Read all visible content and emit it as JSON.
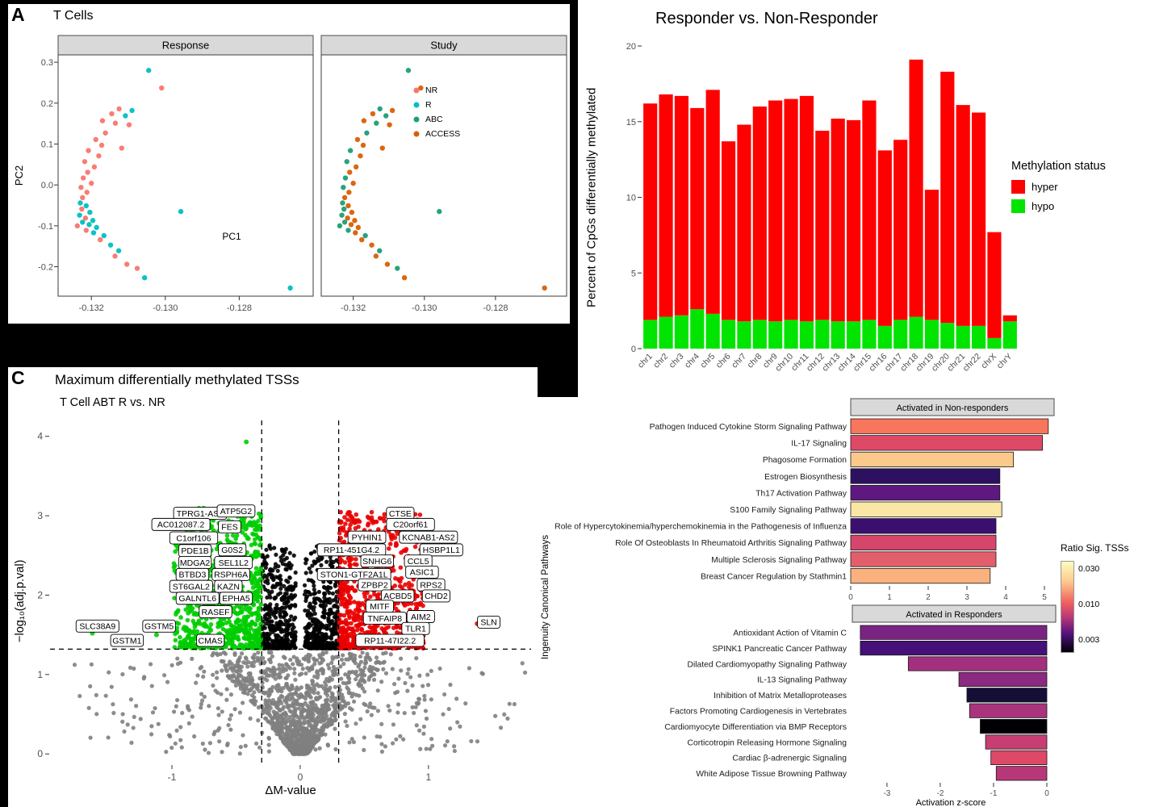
{
  "panels": {
    "a": {
      "letter": "A",
      "title": "T Cells"
    },
    "c": {
      "letter": "C",
      "title": "Maximum differentially methylated TSSs",
      "subtitle": "T Cell ABT R vs. NR"
    }
  },
  "chart_data": [
    {
      "id": "pca_t_cells",
      "type": "scatter",
      "title": "T Cells",
      "facets": [
        "Response",
        "Study"
      ],
      "xlabel": "PC1",
      "ylabel": "PC2",
      "x_ticks": [
        -0.132,
        -0.13,
        -0.128
      ],
      "y_ticks": [
        -0.2,
        -0.1,
        0,
        0.1,
        0.2,
        0.3
      ],
      "xlim": [
        -0.1329,
        -0.126
      ],
      "ylim": [
        -0.272,
        0.318
      ],
      "colors": {
        "NR": "#F8766D",
        "R": "#00BFC4",
        "ABC": "#1B9E77",
        "ACCESS": "#D95F02"
      },
      "legend": [
        {
          "label": "NR",
          "color": "#F8766D"
        },
        {
          "label": "R",
          "color": "#00BFC4"
        },
        {
          "label": "ABC",
          "color": "#1B9E77"
        },
        {
          "label": "ACCESS",
          "color": "#D95F02"
        }
      ],
      "point_format": [
        "x",
        "y",
        "response",
        "study"
      ],
      "points": [
        [
          -0.13045,
          0.28,
          "R",
          "ABC"
        ],
        [
          -0.1301,
          0.237,
          "NR",
          "ACCESS"
        ],
        [
          -0.13125,
          0.186,
          "NR",
          "ABC"
        ],
        [
          -0.1309,
          0.182,
          "R",
          "ACCESS"
        ],
        [
          -0.13145,
          0.174,
          "NR",
          "ACCESS"
        ],
        [
          -0.13108,
          0.169,
          "R",
          "ABC"
        ],
        [
          -0.1317,
          0.157,
          "NR",
          "ACCESS"
        ],
        [
          -0.13135,
          0.151,
          "NR",
          "ABC"
        ],
        [
          -0.13098,
          0.147,
          "NR",
          "ACCESS"
        ],
        [
          -0.13162,
          0.127,
          "NR",
          "ABC"
        ],
        [
          -0.13188,
          0.111,
          "NR",
          "ACCESS"
        ],
        [
          -0.13118,
          0.09,
          "NR",
          "ACCESS"
        ],
        [
          -0.13172,
          0.097,
          "NR",
          "ACCESS"
        ],
        [
          -0.13208,
          0.084,
          "NR",
          "ABC"
        ],
        [
          -0.1318,
          0.071,
          "NR",
          "ACCESS"
        ],
        [
          -0.13218,
          0.057,
          "NR",
          "ABC"
        ],
        [
          -0.13192,
          0.044,
          "NR",
          "ACCESS"
        ],
        [
          -0.1321,
          0.031,
          "NR",
          "ACCESS"
        ],
        [
          -0.13222,
          0.017,
          "NR",
          "ABC"
        ],
        [
          -0.132,
          0.004,
          "NR",
          "ACCESS"
        ],
        [
          -0.13228,
          -0.006,
          "NR",
          "ABC"
        ],
        [
          -0.13212,
          -0.018,
          "NR",
          "ACCESS"
        ],
        [
          -0.13224,
          -0.031,
          "NR",
          "ACCESS"
        ],
        [
          -0.1323,
          -0.044,
          "R",
          "ABC"
        ],
        [
          -0.13214,
          -0.051,
          "R",
          "ACCESS"
        ],
        [
          -0.13226,
          -0.059,
          "NR",
          "ABC"
        ],
        [
          -0.13204,
          -0.067,
          "R",
          "ACCESS"
        ],
        [
          -0.13232,
          -0.074,
          "R",
          "ABC"
        ],
        [
          -0.13216,
          -0.081,
          "NR",
          "ACCESS"
        ],
        [
          -0.13196,
          -0.087,
          "R",
          "ACCESS"
        ],
        [
          -0.13224,
          -0.091,
          "R",
          "ABC"
        ],
        [
          -0.13206,
          -0.097,
          "R",
          "ACCESS"
        ],
        [
          -0.13238,
          -0.1,
          "NR",
          "ABC"
        ],
        [
          -0.13186,
          -0.104,
          "R",
          "ACCESS"
        ],
        [
          -0.13214,
          -0.111,
          "NR",
          "ABC"
        ],
        [
          -0.13194,
          -0.117,
          "R",
          "ACCESS"
        ],
        [
          -0.13166,
          -0.124,
          "R",
          "ABC"
        ],
        [
          -0.13176,
          -0.134,
          "NR",
          "ACCESS"
        ],
        [
          -0.13148,
          -0.147,
          "R",
          "ACCESS"
        ],
        [
          -0.13126,
          -0.161,
          "R",
          "ABC"
        ],
        [
          -0.13136,
          -0.174,
          "NR",
          "ACCESS"
        ],
        [
          -0.13104,
          -0.194,
          "NR",
          "ACCESS"
        ],
        [
          -0.13076,
          -0.204,
          "NR",
          "ABC"
        ],
        [
          -0.13056,
          -0.227,
          "R",
          "ACCESS"
        ],
        [
          -0.12958,
          -0.065,
          "R",
          "ABC"
        ],
        [
          -0.12662,
          -0.252,
          "R",
          "ACCESS"
        ]
      ]
    },
    {
      "id": "methylation_by_chromosome",
      "type": "bar",
      "stacked": true,
      "title": "Responder vs. Non-Responder",
      "ylabel": "Percent of CpGs differentially methylated",
      "legend_title": "Methylation status",
      "ylim": [
        0,
        20
      ],
      "y_ticks": [
        0,
        5,
        10,
        15,
        20
      ],
      "categories": [
        "chr1",
        "chr2",
        "chr3",
        "chr4",
        "chr5",
        "chr6",
        "chr7",
        "chr8",
        "chr9",
        "chr10",
        "chr11",
        "chr12",
        "chr13",
        "chr14",
        "chr15",
        "chr16",
        "chr17",
        "chr18",
        "chr19",
        "chr20",
        "chr21",
        "chr22",
        "chrX",
        "chrY"
      ],
      "series": [
        {
          "name": "hyper",
          "color": "#FF0000",
          "values": [
            14.3,
            14.7,
            14.5,
            13.3,
            14.8,
            11.8,
            13.0,
            14.1,
            14.6,
            14.6,
            14.9,
            12.5,
            13.4,
            13.3,
            14.5,
            11.6,
            11.9,
            17.0,
            8.6,
            16.6,
            14.6,
            14.1,
            7.0,
            0.4
          ]
        },
        {
          "name": "hypo",
          "color": "#00E400",
          "values": [
            1.9,
            2.1,
            2.2,
            2.6,
            2.3,
            1.9,
            1.8,
            1.9,
            1.8,
            1.9,
            1.8,
            1.9,
            1.8,
            1.8,
            1.9,
            1.5,
            1.9,
            2.1,
            1.9,
            1.7,
            1.5,
            1.5,
            0.7,
            1.8
          ]
        }
      ]
    },
    {
      "id": "volcano_tss",
      "type": "scatter",
      "title": "Maximum differentially methylated TSSs",
      "subtitle": "T Cell ABT R vs. NR",
      "xlabel": "ΔM-value",
      "ylabel": "−log₁₀(adj.p.val)",
      "xlim": [
        -1.95,
        1.8
      ],
      "ylim": [
        -0.13,
        4.2
      ],
      "x_ticks": [
        -1,
        0,
        1
      ],
      "y_ticks": [
        0,
        1,
        2,
        3,
        4
      ],
      "thresholds": {
        "m_value": 0.3,
        "adj_p": 1.32
      },
      "colors": {
        "hyper": "#EA0000",
        "hypo": "#00CD00",
        "between": "#000000",
        "nonsig": "#7F7F7F"
      },
      "cloud": {
        "seed": 11,
        "nonsig": 1500,
        "between": 800,
        "hypo": 900,
        "hyper": 850
      },
      "extra_points": [
        {
          "x": -0.42,
          "y": 3.93,
          "class": "hypo"
        },
        {
          "x": 1.38,
          "y": 1.64,
          "class": "hyper"
        },
        {
          "x": -1.62,
          "y": 1.52,
          "class": "hypo"
        },
        {
          "x": -1.12,
          "y": 1.5,
          "class": "hypo"
        }
      ],
      "labels_left": [
        {
          "name": "TPRG1-AS1",
          "x": -0.78,
          "y": 3.03
        },
        {
          "name": "ATP5G2",
          "x": -0.5,
          "y": 3.06
        },
        {
          "name": "AC012087.2",
          "x": -0.93,
          "y": 2.89
        },
        {
          "name": "FES",
          "x": -0.55,
          "y": 2.86
        },
        {
          "name": "C1orf106",
          "x": -0.83,
          "y": 2.72
        },
        {
          "name": "PDE1B",
          "x": -0.82,
          "y": 2.56
        },
        {
          "name": "G0S2",
          "x": -0.53,
          "y": 2.57
        },
        {
          "name": "MDGA2",
          "x": -0.82,
          "y": 2.41
        },
        {
          "name": "SEL1L2",
          "x": -0.52,
          "y": 2.41
        },
        {
          "name": "BTBD3",
          "x": -0.84,
          "y": 2.26
        },
        {
          "name": "RSPH6A",
          "x": -0.54,
          "y": 2.26
        },
        {
          "name": "ST6GAL2",
          "x": -0.85,
          "y": 2.11
        },
        {
          "name": "KAZN",
          "x": -0.56,
          "y": 2.11
        },
        {
          "name": "GALNTL6",
          "x": -0.8,
          "y": 1.96
        },
        {
          "name": "EPHA5",
          "x": -0.5,
          "y": 1.96
        },
        {
          "name": "RASEF",
          "x": -0.66,
          "y": 1.79
        },
        {
          "name": "SLC38A9",
          "x": -1.58,
          "y": 1.61
        },
        {
          "name": "GSTM5",
          "x": -1.1,
          "y": 1.61
        },
        {
          "name": "GSTM1",
          "x": -1.35,
          "y": 1.43
        },
        {
          "name": "CMAS",
          "x": -0.7,
          "y": 1.43
        }
      ],
      "labels_right": [
        {
          "name": "CTSE",
          "x": 0.78,
          "y": 3.03
        },
        {
          "name": "C20orf61",
          "x": 0.86,
          "y": 2.89
        },
        {
          "name": "PYHIN1",
          "x": 0.52,
          "y": 2.73
        },
        {
          "name": "KCNAB1-AS2",
          "x": 1.0,
          "y": 2.73
        },
        {
          "name": "RP11-451G4.2",
          "x": 0.4,
          "y": 2.57
        },
        {
          "name": "HSBP1L1",
          "x": 1.1,
          "y": 2.57
        },
        {
          "name": "SNHG6",
          "x": 0.6,
          "y": 2.43
        },
        {
          "name": "CCL5",
          "x": 0.92,
          "y": 2.43
        },
        {
          "name": "STON1-GTF2A1L",
          "x": 0.42,
          "y": 2.26
        },
        {
          "name": "ASIC1",
          "x": 0.95,
          "y": 2.29
        },
        {
          "name": "ZPBP2",
          "x": 0.58,
          "y": 2.13
        },
        {
          "name": "RPS2",
          "x": 1.02,
          "y": 2.13
        },
        {
          "name": "ACBD5",
          "x": 0.76,
          "y": 1.99
        },
        {
          "name": "CHD2",
          "x": 1.06,
          "y": 1.99
        },
        {
          "name": "MITF",
          "x": 0.62,
          "y": 1.86
        },
        {
          "name": "TNFAIP8",
          "x": 0.66,
          "y": 1.71
        },
        {
          "name": "AIM2",
          "x": 0.94,
          "y": 1.73
        },
        {
          "name": "SLN",
          "x": 1.47,
          "y": 1.66
        },
        {
          "name": "TLR1",
          "x": 0.9,
          "y": 1.58
        },
        {
          "name": "RP11-47I22.2",
          "x": 0.7,
          "y": 1.43
        }
      ]
    },
    {
      "id": "pathways",
      "type": "bar",
      "orientation": "horizontal",
      "ylabel": "Ingenuity Canonical Pathways",
      "xlabel": "Activation z-score",
      "legend": {
        "title": "Ratio Sig. TSSs",
        "ticks": [
          "0.030",
          "0.010",
          "0.003"
        ]
      },
      "groups": [
        {
          "title": "Activated in Non-responders",
          "xlim": [
            0,
            5.25
          ],
          "x_ticks": [
            0,
            1,
            2,
            3,
            4,
            5
          ],
          "bars": [
            {
              "name": "Pathogen Induced Cytokine Storm Signaling Pathway",
              "value": 5.1,
              "color": "#F8765C"
            },
            {
              "name": "IL-17 Signaling",
              "value": 4.95,
              "color": "#DE4968"
            },
            {
              "name": "Phagosome Formation",
              "value": 4.2,
              "color": "#FCC98B"
            },
            {
              "name": "Estrogen Biosynthesis",
              "value": 3.85,
              "color": "#2D1160"
            },
            {
              "name": "Th17 Activation Pathway",
              "value": 3.85,
              "color": "#5F187F"
            },
            {
              "name": "S100 Family Signaling Pathway",
              "value": 3.9,
              "color": "#FAE7A5"
            },
            {
              "name": "Role of Hypercytokinemia/hyperchemokinemia in the Pathogenesis of Influenza",
              "value": 3.75,
              "color": "#3B0F70"
            },
            {
              "name": "Role Of Osteoblasts In Rheumatoid Arthritis Signaling Pathway",
              "value": 3.75,
              "color": "#D6456C"
            },
            {
              "name": "Multiple Sclerosis Signaling Pathway",
              "value": 3.75,
              "color": "#E25E6A"
            },
            {
              "name": "Breast Cancer Regulation by Stathmin1",
              "value": 3.6,
              "color": "#FBB17E"
            }
          ]
        },
        {
          "title": "Activated in Responders",
          "xlim": [
            -3.65,
            0
          ],
          "x_ticks": [
            -3,
            -2,
            -1,
            0
          ],
          "bars": [
            {
              "name": "Antioxidant Action of Vitamin C",
              "value": -3.5,
              "color": "#7B2382"
            },
            {
              "name": "SPINK1 Pancreatic Cancer Pathway",
              "value": -3.5,
              "color": "#451077"
            },
            {
              "name": "Dilated Cardiomyopathy Signaling Pathway",
              "value": -2.6,
              "color": "#A3307E"
            },
            {
              "name": "IL-13 Signaling Pathway",
              "value": -1.65,
              "color": "#8C2981"
            },
            {
              "name": "Inhibition of Matrix Metalloproteases",
              "value": -1.5,
              "color": "#150E37"
            },
            {
              "name": "Factors Promoting Cardiogenesis in Vertebrates",
              "value": -1.45,
              "color": "#AA337D"
            },
            {
              "name": "Cardiomyocyte Differentiation via BMP Receptors",
              "value": -1.25,
              "color": "#000004"
            },
            {
              "name": "Corticotropin Releasing Hormone Signaling",
              "value": -1.15,
              "color": "#C83E73"
            },
            {
              "name": "Cardiac β-adrenergic Signaling",
              "value": -1.05,
              "color": "#DE4968"
            },
            {
              "name": "White Adipose Tissue Browning Pathway",
              "value": -0.95,
              "color": "#B73779"
            }
          ]
        }
      ]
    }
  ]
}
